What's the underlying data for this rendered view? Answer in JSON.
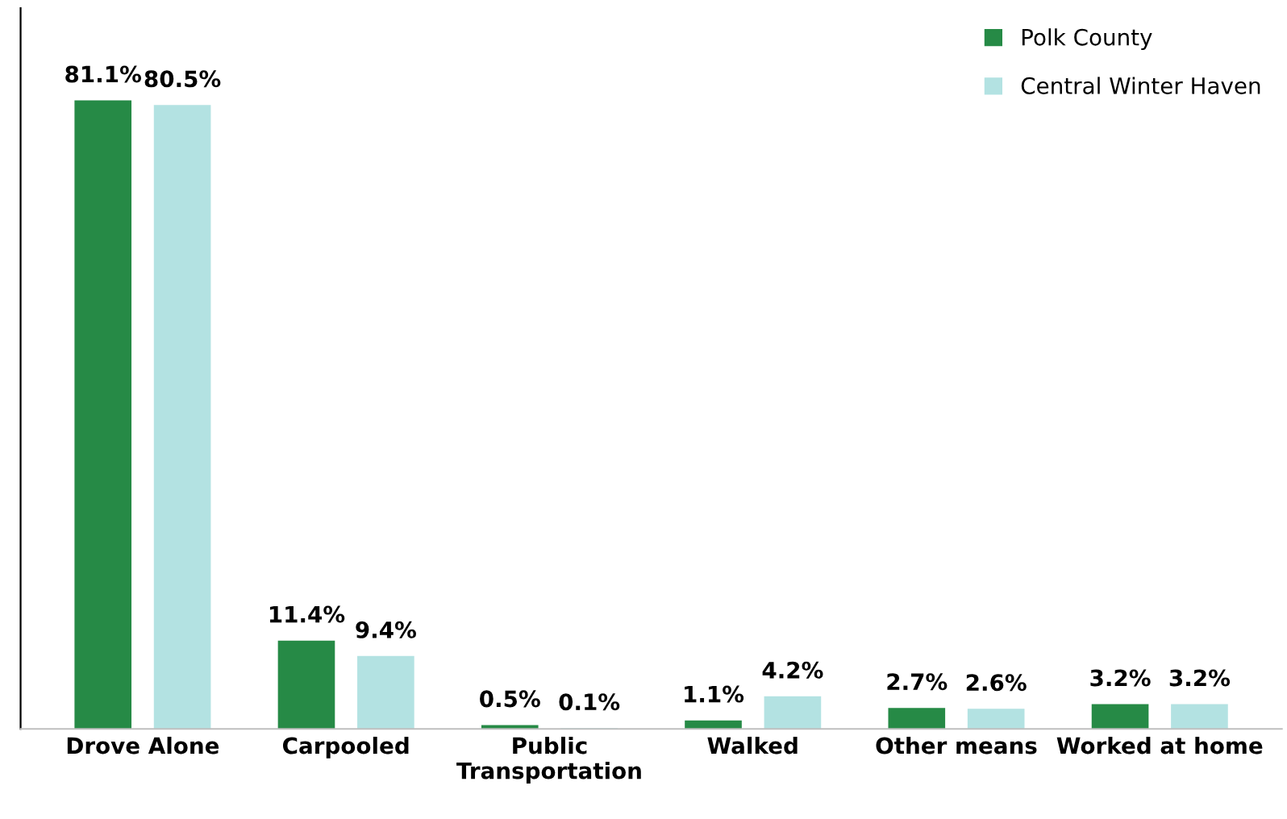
{
  "chart_data": {
    "type": "bar",
    "categories": [
      "Drove Alone",
      "Carpooled",
      "Public\nTransportation",
      "Walked",
      "Other means",
      "Worked at home"
    ],
    "series": [
      {
        "name": "Polk County",
        "color": "#268a46",
        "values": [
          81.1,
          11.4,
          0.5,
          1.1,
          2.7,
          3.2
        ],
        "value_labels": [
          "81.1%",
          "11.4%",
          "0.5%",
          "1.1%",
          "2.7%",
          "3.2%"
        ]
      },
      {
        "name": "Central Winter Haven",
        "color": "#b3e2e2",
        "values": [
          80.5,
          9.4,
          0.1,
          4.2,
          2.6,
          3.2
        ],
        "value_labels": [
          "80.5%",
          "9.4%",
          "0.1%",
          "4.2%",
          "2.6%",
          "3.2%"
        ]
      }
    ],
    "ylim": [
      0,
      93
    ],
    "tick_labels": "x",
    "legend": "top right",
    "grid": false
  }
}
